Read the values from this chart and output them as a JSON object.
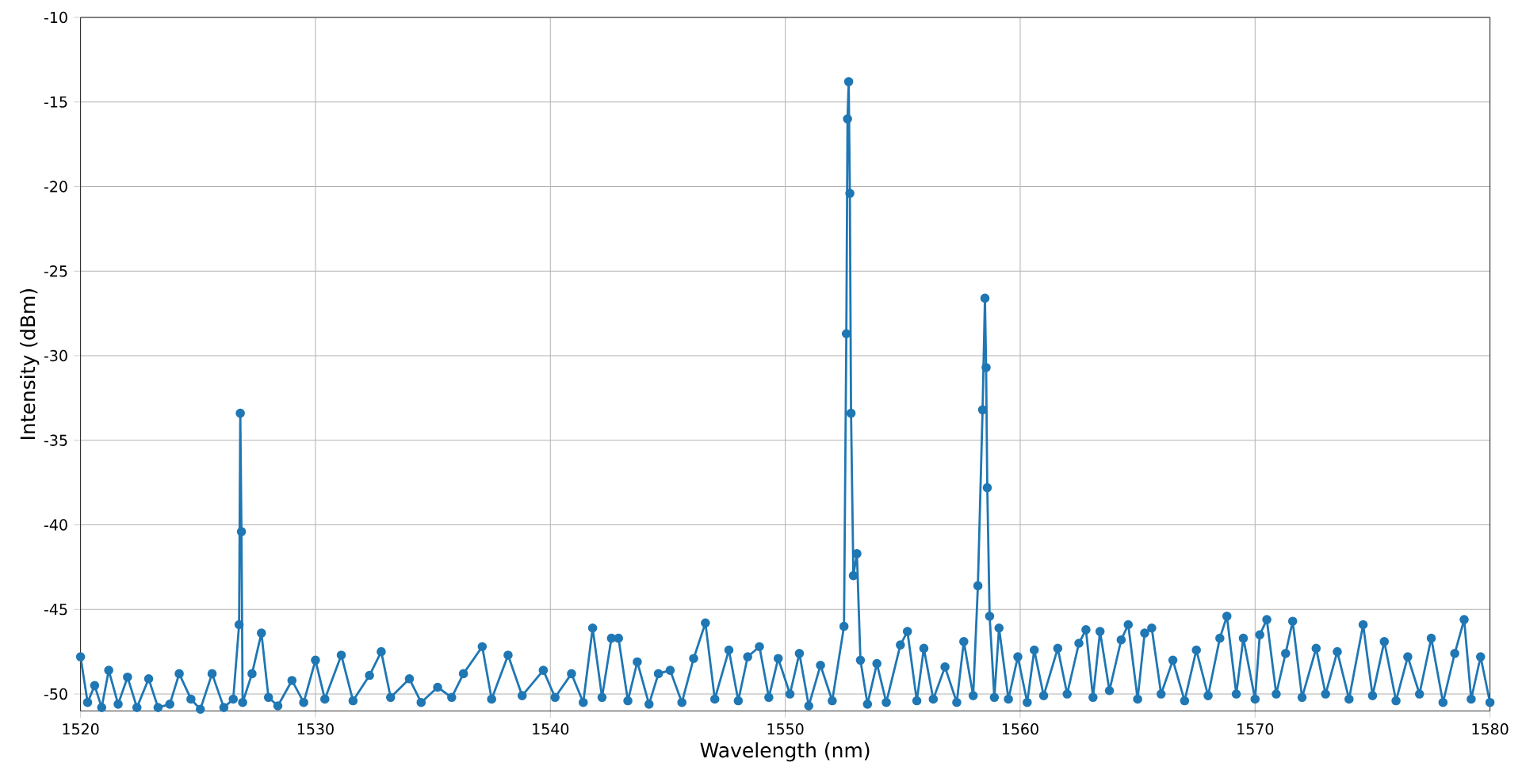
{
  "chart_data": {
    "type": "line",
    "xlabel": "Wavelength (nm)",
    "ylabel": "Intensity (dBm)",
    "xlim": [
      1520,
      1580
    ],
    "ylim": [
      -51,
      -10
    ],
    "xticks": [
      1520,
      1530,
      1540,
      1550,
      1560,
      1570,
      1580
    ],
    "yticks": [
      -50,
      -45,
      -40,
      -35,
      -30,
      -25,
      -20,
      -15,
      -10
    ],
    "grid": true,
    "marker": "circle",
    "line_style": "solid",
    "series": [
      {
        "color": "#1f77b4",
        "x": [
          1520.0,
          1520.3,
          1520.6,
          1520.9,
          1521.2,
          1521.6,
          1522.0,
          1522.4,
          1522.9,
          1523.3,
          1523.8,
          1524.2,
          1524.7,
          1525.1,
          1525.6,
          1526.1,
          1526.5,
          1526.75,
          1526.8,
          1526.85,
          1526.9,
          1527.3,
          1527.7,
          1528.0,
          1528.4,
          1529.0,
          1529.5,
          1530.0,
          1530.4,
          1531.1,
          1531.6,
          1532.3,
          1532.8,
          1533.2,
          1534.0,
          1534.5,
          1535.2,
          1535.8,
          1536.3,
          1537.1,
          1537.5,
          1538.2,
          1538.8,
          1539.7,
          1540.2,
          1540.9,
          1541.4,
          1541.8,
          1542.2,
          1542.6,
          1542.9,
          1543.3,
          1543.7,
          1544.2,
          1544.6,
          1545.1,
          1545.6,
          1546.1,
          1546.6,
          1547.0,
          1547.6,
          1548.0,
          1548.4,
          1548.9,
          1549.3,
          1549.7,
          1550.2,
          1550.6,
          1551.0,
          1551.5,
          1552.0,
          1552.5,
          1552.6,
          1552.65,
          1552.7,
          1552.75,
          1552.8,
          1552.9,
          1553.05,
          1553.2,
          1553.5,
          1553.9,
          1554.3,
          1554.9,
          1555.2,
          1555.6,
          1555.9,
          1556.3,
          1556.8,
          1557.3,
          1557.6,
          1558.0,
          1558.2,
          1558.4,
          1558.5,
          1558.55,
          1558.6,
          1558.7,
          1558.9,
          1559.1,
          1559.5,
          1559.9,
          1560.3,
          1560.6,
          1561.0,
          1561.6,
          1562.0,
          1562.5,
          1562.8,
          1563.1,
          1563.4,
          1563.8,
          1564.3,
          1564.6,
          1565.0,
          1565.3,
          1565.6,
          1566.0,
          1566.5,
          1567.0,
          1567.5,
          1568.0,
          1568.5,
          1568.8,
          1569.2,
          1569.5,
          1570.0,
          1570.2,
          1570.5,
          1570.9,
          1571.3,
          1571.6,
          1572.0,
          1572.6,
          1573.0,
          1573.5,
          1574.0,
          1574.6,
          1575.0,
          1575.5,
          1576.0,
          1576.5,
          1577.0,
          1577.5,
          1578.0,
          1578.5,
          1578.9,
          1579.2,
          1579.6,
          1580.0
        ],
        "values": [
          -47.8,
          -50.5,
          -49.5,
          -50.8,
          -48.6,
          -50.6,
          -49.0,
          -50.8,
          -49.1,
          -50.8,
          -50.6,
          -48.8,
          -50.3,
          -50.9,
          -48.8,
          -50.8,
          -50.3,
          -45.9,
          -33.4,
          -40.4,
          -50.5,
          -48.8,
          -46.4,
          -50.2,
          -50.7,
          -49.2,
          -50.5,
          -48.0,
          -50.3,
          -47.7,
          -50.4,
          -48.9,
          -47.5,
          -50.2,
          -49.1,
          -50.5,
          -49.6,
          -50.2,
          -48.8,
          -47.2,
          -50.3,
          -47.7,
          -50.1,
          -48.6,
          -50.2,
          -48.8,
          -50.5,
          -46.1,
          -50.2,
          -46.7,
          -46.7,
          -50.4,
          -48.1,
          -50.6,
          -48.8,
          -48.6,
          -50.5,
          -47.9,
          -45.8,
          -50.3,
          -47.4,
          -50.4,
          -47.8,
          -47.2,
          -50.2,
          -47.9,
          -50.0,
          -47.6,
          -50.7,
          -48.3,
          -50.4,
          -46.0,
          -28.7,
          -16.0,
          -13.8,
          -20.4,
          -33.4,
          -43.0,
          -41.7,
          -48.0,
          -50.6,
          -48.2,
          -50.5,
          -47.1,
          -46.3,
          -50.4,
          -47.3,
          -50.3,
          -48.4,
          -50.5,
          -46.9,
          -50.1,
          -43.6,
          -33.2,
          -26.6,
          -30.7,
          -37.8,
          -45.4,
          -50.2,
          -46.1,
          -50.3,
          -47.8,
          -50.5,
          -47.4,
          -50.1,
          -47.3,
          -50.0,
          -47.0,
          -46.2,
          -50.2,
          -46.3,
          -49.8,
          -46.8,
          -45.9,
          -50.3,
          -46.4,
          -46.1,
          -50.0,
          -48.0,
          -50.4,
          -47.4,
          -50.1,
          -46.7,
          -45.4,
          -50.0,
          -46.7,
          -50.3,
          -46.5,
          -45.6,
          -50.0,
          -47.6,
          -45.7,
          -50.2,
          -47.3,
          -50.0,
          -47.5,
          -50.3,
          -45.9,
          -50.1,
          -46.9,
          -50.4,
          -47.8,
          -50.0,
          -46.7,
          -50.5,
          -47.6,
          -45.6,
          -50.3,
          -47.8,
          -50.5
        ]
      }
    ]
  }
}
